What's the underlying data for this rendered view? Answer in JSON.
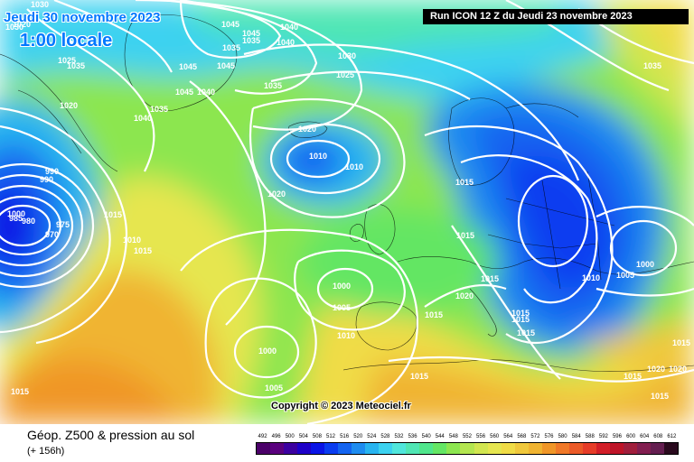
{
  "header": {
    "date": "Jeudi 30 novembre 2023",
    "time": "1:00 locale",
    "run": "Run ICON 12 Z du Jeudi 23 novembre 2023"
  },
  "footer": {
    "product": "Géop. Z500 & pression au sol",
    "lead": "(+ 156h)",
    "copyright": "Copyright © 2023 Meteociel.fr"
  },
  "scale": {
    "labels": [
      "492",
      "496",
      "500",
      "504",
      "508",
      "512",
      "516",
      "520",
      "524",
      "528",
      "532",
      "536",
      "540",
      "544",
      "548",
      "552",
      "556",
      "560",
      "564",
      "568",
      "572",
      "576",
      "580",
      "584",
      "588",
      "592",
      "596",
      "600",
      "604",
      "608",
      "612"
    ],
    "colors": [
      "#4b0069",
      "#5a007e",
      "#3c00a0",
      "#1e00c8",
      "#0a14e6",
      "#0a3cf0",
      "#1464f0",
      "#1e8cf0",
      "#28b4f0",
      "#3cd2f0",
      "#50e6dc",
      "#50e6b4",
      "#50e68c",
      "#64e664",
      "#8ce650",
      "#b4e650",
      "#d2e650",
      "#e6e650",
      "#f0dc46",
      "#f0c83c",
      "#f0b432",
      "#f09628",
      "#f07828",
      "#eb5a28",
      "#e63c28",
      "#d21e28",
      "#be1428",
      "#a01e3c",
      "#821e50",
      "#641e50",
      "#2a0a1e"
    ]
  },
  "map": {
    "isobar_labels": [
      "1045",
      "1040",
      "1045",
      "1040",
      "1030",
      "1035",
      "1035",
      "1045",
      "1045",
      "1025",
      "1035",
      "1045",
      "1040",
      "1030",
      "1020",
      "1035",
      "1040",
      "1030",
      "1025",
      "1020",
      "1010",
      "1010",
      "1020",
      "1015",
      "1015",
      "1015",
      "1000",
      "985",
      "990",
      "970",
      "975",
      "980",
      "990",
      "1010",
      "1015",
      "1015",
      "1015",
      "1015",
      "1000",
      "1005",
      "1020",
      "1015",
      "1020",
      "1015",
      "1010",
      "1010",
      "1005",
      "1000",
      "1000",
      "1005",
      "1015",
      "1015",
      "1020",
      "1015",
      "1015",
      "1035",
      "1035",
      "1020",
      "1015"
    ]
  },
  "colors": {
    "title_blue": "#0078ff",
    "isobar": "#ffffff",
    "low_centre": "#0a14c8"
  }
}
